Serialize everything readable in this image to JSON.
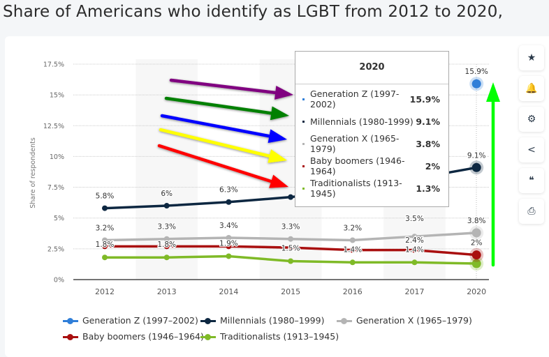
{
  "title": "Share of Americans who identify as LGBT from 2012 to 2020,",
  "chart_data": {
    "type": "line",
    "ylabel": "Share of respondents",
    "xlabel": "",
    "ylim": [
      0,
      17.5
    ],
    "y_ticks": [
      "0%",
      "2.5%",
      "5%",
      "7.5%",
      "10%",
      "12.5%",
      "15%",
      "17.5%"
    ],
    "y_tick_values": [
      0,
      2.5,
      5,
      7.5,
      10,
      12.5,
      15,
      17.5
    ],
    "categories": [
      "2012",
      "2013",
      "2014",
      "2015",
      "2016",
      "2017",
      "2020"
    ],
    "grid": true,
    "legend_placement": "bottom",
    "series": [
      {
        "name": "Generation Z (1997-2002)",
        "color": "#2f7ed8",
        "values": [
          null,
          null,
          null,
          null,
          null,
          null,
          15.9
        ],
        "labels": [
          "",
          "",
          "",
          "",
          "",
          "",
          "15.9%"
        ]
      },
      {
        "name": "Millennials (1980-1999)",
        "color": "#0d2741",
        "values": [
          5.8,
          6.0,
          6.3,
          6.7,
          7.3,
          8.2,
          9.1
        ],
        "labels": [
          "5.8%",
          "6%",
          "6.3%",
          "",
          "",
          "",
          "9.1%"
        ]
      },
      {
        "name": "Generation X (1965-1979)",
        "color": "#b4b4b4",
        "values": [
          3.2,
          3.3,
          3.4,
          3.3,
          3.2,
          3.5,
          3.8
        ],
        "labels": [
          "3.2%",
          "3.3%",
          "3.4%",
          "3.3%",
          "3.2%",
          "3.5%",
          "3.8%"
        ]
      },
      {
        "name": "Baby boomers (1946-1964)",
        "color": "#a90f0f",
        "values": [
          2.7,
          2.7,
          2.7,
          2.6,
          2.4,
          2.4,
          2.0
        ],
        "labels": [
          "",
          "",
          "",
          "",
          "",
          "2.4%",
          "2%"
        ]
      },
      {
        "name": "Traditionalists (1913-1945)",
        "color": "#7fba27",
        "values": [
          1.8,
          1.8,
          1.9,
          1.5,
          1.4,
          1.4,
          1.3
        ],
        "labels": [
          "1.8%",
          "1.8%",
          "1.9%",
          "1.5%",
          "1.4%",
          "1.4%",
          ""
        ]
      }
    ],
    "tooltip": {
      "year": "2020",
      "rows": [
        {
          "label": "Generation Z (1997-2002)",
          "value": "15.9%",
          "color": "#2f7ed8"
        },
        {
          "label": "Millennials (1980-1999)",
          "value": "9.1%",
          "color": "#0d2741"
        },
        {
          "label": "Generation X (1965-1979)",
          "value": "3.8%",
          "color": "#b4b4b4"
        },
        {
          "label": "Baby boomers (1946-1964)",
          "value": "2%",
          "color": "#a90f0f"
        },
        {
          "label": "Traditionalists (1913-1945)",
          "value": "1.3%",
          "color": "#7fba27"
        }
      ]
    },
    "annotation_arrow_colors": [
      "#800080",
      "#008000",
      "#0000ff",
      "#ffff00",
      "#ff0000"
    ],
    "highlight_arrow_color": "#00ff00"
  },
  "sidebar": {
    "icons": [
      "star-icon",
      "bell-icon",
      "gear-icon",
      "share-icon",
      "quote-icon",
      "print-icon"
    ],
    "glyphs": [
      "★",
      "🔔",
      "⚙",
      "<",
      "❝",
      "⎙"
    ]
  }
}
